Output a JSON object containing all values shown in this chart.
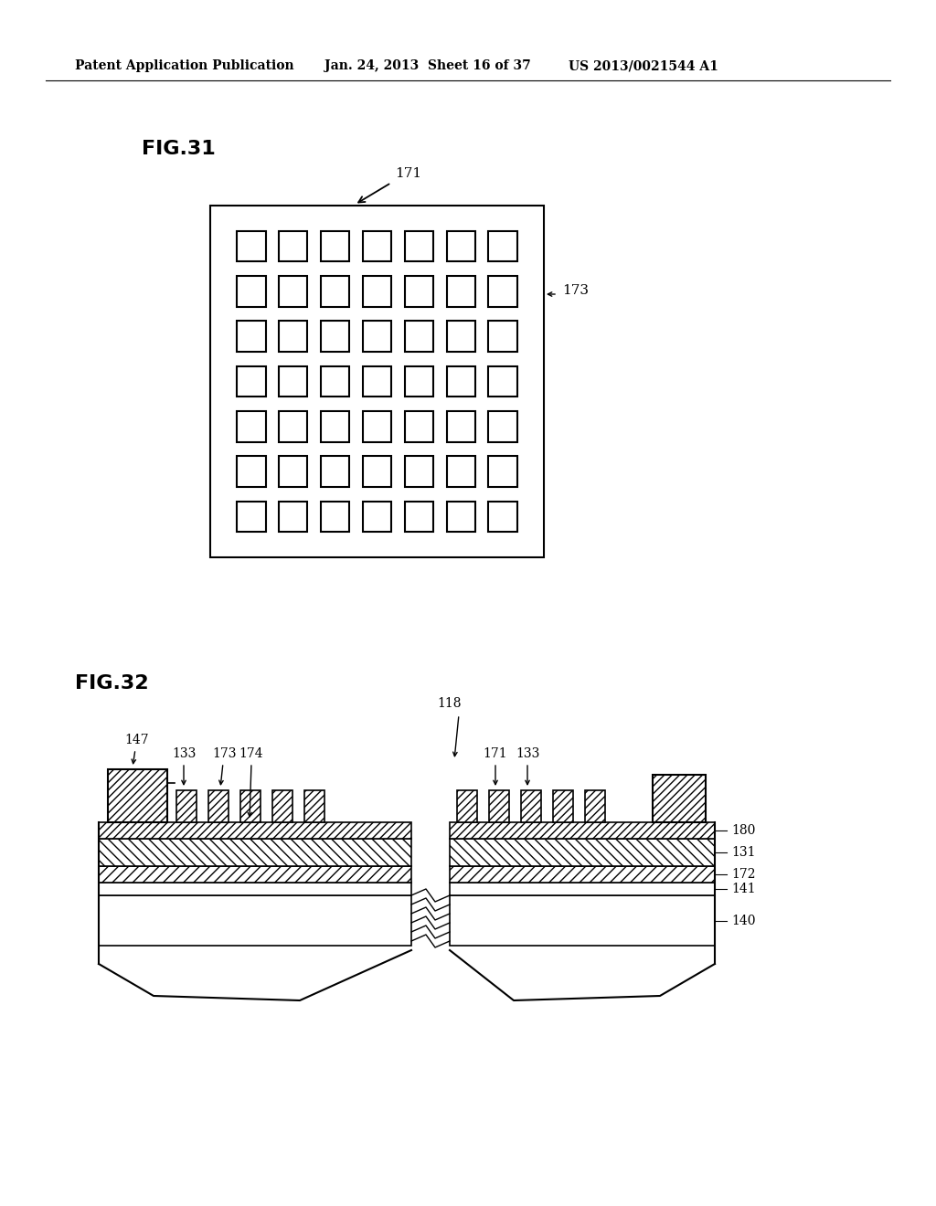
{
  "bg_color": "#ffffff",
  "header_text": "Patent Application Publication",
  "header_date": "Jan. 24, 2013",
  "header_sheet": "Sheet 16 of 37",
  "header_patent": "US 2013/0021544 A1",
  "fig31_label": "FIG.31",
  "fig32_label": "FIG.32",
  "label_171": "171",
  "label_173": "173",
  "label_147": "147",
  "label_133a": "133",
  "label_173b": "173",
  "label_174": "174",
  "label_118": "118",
  "label_171b": "171",
  "label_133b": "133",
  "label_180": "180",
  "label_131": "131",
  "label_172": "172",
  "label_141": "141",
  "label_140": "140"
}
